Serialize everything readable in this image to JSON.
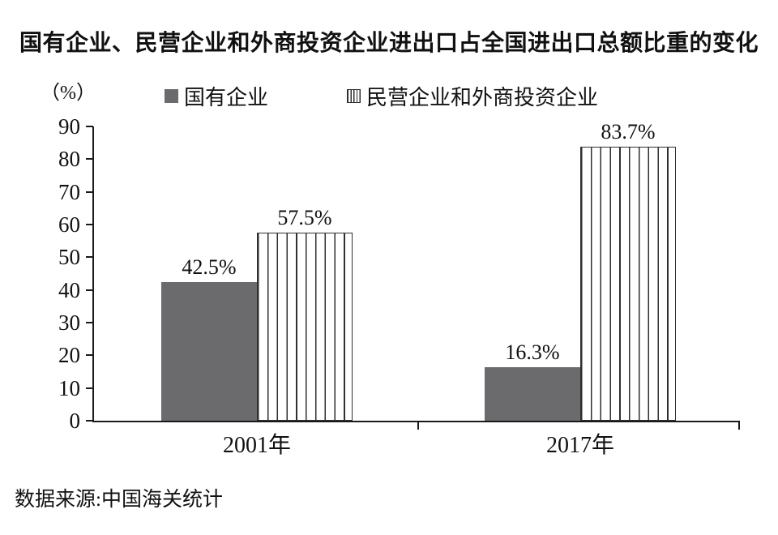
{
  "title": "国有企业、民营企业和外商投资企业进出口占全国进出口总额比重的变化",
  "y_axis_unit": "（%）",
  "legend": {
    "items": [
      {
        "label": "国有企业",
        "marker": "solid-gray-square"
      },
      {
        "label": "民营企业和外商投资企业",
        "marker": "vertical-striped-square"
      }
    ]
  },
  "source_note": "数据来源:中国海关统计",
  "colors": {
    "solid_bar": "#6b6b6e",
    "stripe_line": "#2f2f2f",
    "axis": "#1a1a1a",
    "text": "#111111"
  },
  "chart_data": {
    "type": "bar",
    "categories": [
      "2001年",
      "2017年"
    ],
    "series": [
      {
        "name": "国有企业",
        "style": "solid-gray",
        "values": [
          42.5,
          16.3
        ],
        "labels": [
          "42.5%",
          "16.3%"
        ]
      },
      {
        "name": "民营企业和外商投资企业",
        "style": "vertical-stripes",
        "values": [
          57.5,
          83.7
        ],
        "labels": [
          "57.5%",
          "83.7%"
        ]
      }
    ],
    "ylabel": "（%）",
    "ylim": [
      0,
      90
    ],
    "yticks": [
      0,
      10,
      20,
      30,
      40,
      50,
      60,
      70,
      80,
      90
    ],
    "grid": false,
    "legend_position": "top",
    "value_labels_shown": true
  }
}
